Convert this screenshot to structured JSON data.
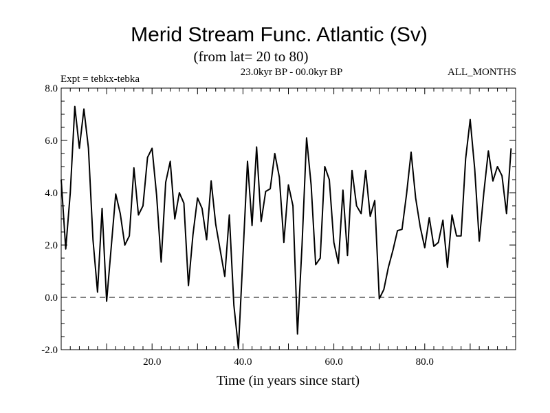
{
  "chart_data": {
    "type": "line",
    "title": "Merid Stream Func. Atlantic (Sv)",
    "subtitle": "(from lat= 20 to 80)",
    "header_left": "Expt = tebkx-tebka",
    "header_center": "23.0kyr BP - 00.0kyr BP",
    "header_right": "ALL_MONTHS",
    "xlabel": "Time (in years since start)",
    "ylabel": "",
    "xlim": [
      0,
      100
    ],
    "ylim": [
      -2.0,
      8.0
    ],
    "xticks": [
      20,
      40,
      60,
      80
    ],
    "xtick_labels": [
      "20.0",
      "40.0",
      "60.0",
      "80.0"
    ],
    "yticks": [
      -2,
      0,
      2,
      4,
      6,
      8
    ],
    "ytick_labels": [
      "-2.0",
      "0.0",
      "2.0",
      "4.0",
      "6.0",
      "8.0"
    ],
    "reference_line": {
      "y": 0.0,
      "style": "dashed"
    },
    "series": [
      {
        "name": "Merid Stream Func",
        "x": [
          0,
          1,
          2,
          3,
          4,
          5,
          6,
          7,
          8,
          9,
          10,
          11,
          12,
          13,
          14,
          15,
          16,
          17,
          18,
          19,
          20,
          21,
          22,
          23,
          24,
          25,
          26,
          27,
          28,
          29,
          30,
          31,
          32,
          33,
          34,
          35,
          36,
          37,
          38,
          39,
          40,
          41,
          42,
          43,
          44,
          45,
          46,
          47,
          48,
          49,
          50,
          51,
          52,
          53,
          54,
          55,
          56,
          57,
          58,
          59,
          60,
          61,
          62,
          63,
          64,
          65,
          66,
          67,
          68,
          69,
          70,
          71,
          72,
          73,
          74,
          75,
          76,
          77,
          78,
          79,
          80,
          81,
          82,
          83,
          84,
          85,
          86,
          87,
          88,
          89,
          90,
          91,
          92,
          93,
          94,
          95,
          96,
          97,
          98,
          99
        ],
        "values": [
          4.5,
          1.85,
          4.0,
          7.3,
          5.7,
          7.2,
          5.7,
          2.2,
          0.2,
          3.4,
          -0.15,
          1.9,
          3.95,
          3.2,
          2.0,
          2.35,
          4.95,
          3.15,
          3.5,
          5.35,
          5.7,
          3.9,
          1.35,
          4.4,
          5.2,
          3.0,
          4.0,
          3.6,
          0.45,
          2.4,
          3.8,
          3.4,
          2.2,
          4.45,
          2.8,
          1.8,
          0.8,
          3.15,
          -0.3,
          -1.95,
          1.6,
          5.2,
          2.75,
          5.75,
          2.9,
          4.05,
          4.15,
          5.5,
          4.6,
          2.1,
          4.3,
          3.5,
          -1.4,
          2.0,
          6.1,
          4.3,
          1.25,
          1.5,
          5.0,
          4.5,
          2.1,
          1.3,
          4.1,
          1.6,
          4.85,
          3.5,
          3.2,
          4.85,
          3.1,
          3.7,
          -0.05,
          0.3,
          1.15,
          1.8,
          2.55,
          2.6,
          3.95,
          5.55,
          3.8,
          2.7,
          1.9,
          3.05,
          1.95,
          2.1,
          2.95,
          1.15,
          3.15,
          2.35,
          2.35,
          5.3,
          6.8,
          4.9,
          2.15,
          4.0,
          5.6,
          4.45,
          5.0,
          4.65,
          3.2,
          5.7
        ]
      }
    ]
  }
}
